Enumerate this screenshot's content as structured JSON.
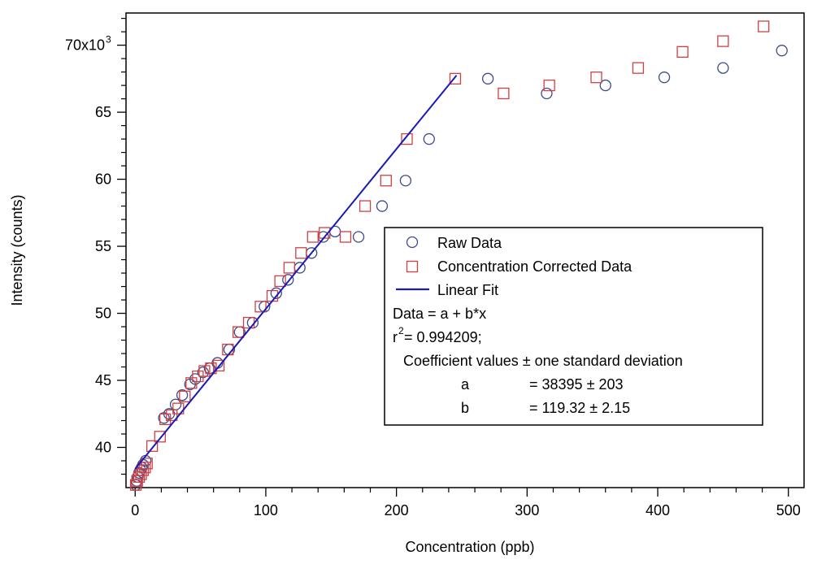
{
  "chart_data": {
    "type": "scatter",
    "title": "",
    "xlabel": "Concentration (ppb)",
    "ylabel": "Intensity (counts)",
    "xlim": [
      -7,
      512
    ],
    "ylim": [
      37000,
      72400
    ],
    "x_ticks": [
      0,
      100,
      200,
      300,
      400,
      500
    ],
    "x_tick_labels": [
      "0",
      "100",
      "200",
      "300",
      "400",
      "500"
    ],
    "y_ticks": [
      40000,
      45000,
      50000,
      55000,
      60000,
      65000,
      70000
    ],
    "y_tick_labels": [
      "40",
      "45",
      "50",
      "55",
      "60",
      "65",
      "70x10"
    ],
    "y_tick_exponent": "3",
    "grid": false,
    "legend_position": "lower-right",
    "series": [
      {
        "name": "Raw Data",
        "marker": "circle",
        "color": "#3b4a8c",
        "points": [
          [
            0.5,
            37200
          ],
          [
            1.2,
            37500
          ],
          [
            2,
            37800
          ],
          [
            3,
            38100
          ],
          [
            4,
            38300
          ],
          [
            5,
            38500
          ],
          [
            6,
            38700
          ],
          [
            8,
            39000
          ],
          [
            22,
            42200
          ],
          [
            26,
            42500
          ],
          [
            31,
            43200
          ],
          [
            36,
            43900
          ],
          [
            42,
            44700
          ],
          [
            46,
            45100
          ],
          [
            52,
            45600
          ],
          [
            57,
            45900
          ],
          [
            63,
            46300
          ],
          [
            72,
            47300
          ],
          [
            80,
            48600
          ],
          [
            90,
            49300
          ],
          [
            99,
            50500
          ],
          [
            108,
            51500
          ],
          [
            117,
            52500
          ],
          [
            126,
            53400
          ],
          [
            135,
            54500
          ],
          [
            144,
            55700
          ],
          [
            153,
            56100
          ],
          [
            171,
            55700
          ],
          [
            189,
            58000
          ],
          [
            207,
            59900
          ],
          [
            225,
            63000
          ],
          [
            270,
            67500
          ],
          [
            315,
            66400
          ],
          [
            360,
            67000
          ],
          [
            405,
            67600
          ],
          [
            450,
            68300
          ],
          [
            495,
            69600
          ]
        ]
      },
      {
        "name": "Concentration Corrected Data",
        "marker": "square",
        "color": "#d04040",
        "points": [
          [
            0.5,
            37200
          ],
          [
            1.5,
            37500
          ],
          [
            3,
            37800
          ],
          [
            4.5,
            38000
          ],
          [
            6,
            38300
          ],
          [
            7.5,
            38500
          ],
          [
            9,
            38800
          ],
          [
            13,
            40100
          ],
          [
            19,
            40800
          ],
          [
            23,
            42100
          ],
          [
            28,
            42400
          ],
          [
            33,
            42900
          ],
          [
            38,
            43800
          ],
          [
            43,
            44800
          ],
          [
            48,
            45300
          ],
          [
            53,
            45700
          ],
          [
            58,
            45900
          ],
          [
            64,
            46100
          ],
          [
            71,
            47300
          ],
          [
            79,
            48600
          ],
          [
            87,
            49300
          ],
          [
            96,
            50500
          ],
          [
            105,
            51300
          ],
          [
            111,
            52400
          ],
          [
            118,
            53400
          ],
          [
            127,
            54500
          ],
          [
            136,
            55700
          ],
          [
            145,
            56000
          ],
          [
            161,
            55700
          ],
          [
            176,
            58000
          ],
          [
            192,
            59900
          ],
          [
            208,
            63000
          ],
          [
            245,
            67500
          ],
          [
            282,
            66400
          ],
          [
            317,
            67000
          ],
          [
            353,
            67600
          ],
          [
            385,
            68300
          ],
          [
            419,
            69500
          ],
          [
            450,
            70300
          ],
          [
            481,
            71400
          ]
        ]
      },
      {
        "name": "Linear Fit",
        "marker": "line",
        "color": "#1a1ab8",
        "x": [
          0,
          246
        ],
        "y": [
          38395,
          67748
        ]
      }
    ],
    "legend": {
      "entries": [
        "Raw Data",
        "Concentration Corrected Data",
        "Linear Fit"
      ],
      "equation": "Data = a + b*x",
      "r2_prefix": "r",
      "r2_exponent": "2",
      "r2_value": "= 0.994209;",
      "coef_header": "Coefficient values ± one standard deviation",
      "coefficients": [
        {
          "name": "a",
          "value": "= 38395 ± 203"
        },
        {
          "name": "b",
          "value": "= 119.32 ± 2.15"
        }
      ]
    }
  }
}
